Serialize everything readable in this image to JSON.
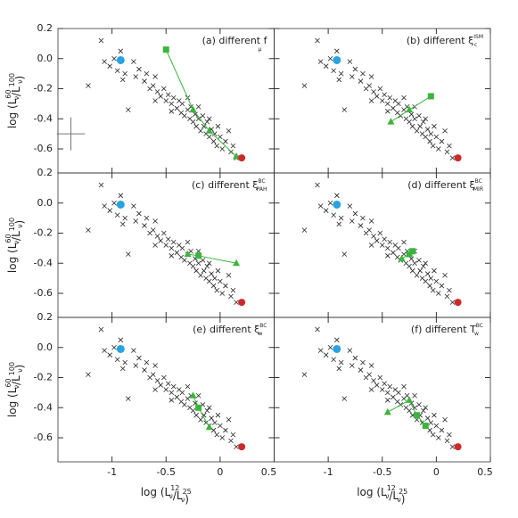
{
  "observed": {
    "x": [
      -1.22,
      -1.1,
      -1.07,
      -1.02,
      -0.98,
      -0.95,
      -0.92,
      -0.88,
      -0.85,
      -0.8,
      -0.78,
      -0.75,
      -0.7,
      -0.68,
      -0.65,
      -0.62,
      -0.6,
      -0.58,
      -0.55,
      -0.52,
      -0.5,
      -0.48,
      -0.45,
      -0.43,
      -0.4,
      -0.38,
      -0.36,
      -0.35,
      -0.33,
      -0.3,
      -0.28,
      -0.27,
      -0.25,
      -0.23,
      -0.22,
      -0.2,
      -0.18,
      -0.16,
      -0.15,
      -0.13,
      -0.12,
      -0.1,
      -0.08,
      -0.06,
      -0.05,
      -0.03,
      -0.02,
      0.0,
      0.02,
      0.05,
      0.08,
      0.1,
      0.12,
      0.15,
      -0.9,
      -0.6,
      -0.45,
      -0.3,
      -0.2,
      -0.1
    ],
    "y": [
      -0.18,
      0.12,
      -0.02,
      -0.05,
      0.0,
      -0.08,
      0.05,
      -0.1,
      -0.34,
      -0.02,
      -0.12,
      -0.07,
      -0.15,
      -0.1,
      -0.2,
      -0.18,
      -0.12,
      -0.22,
      -0.25,
      -0.2,
      -0.28,
      -0.24,
      -0.3,
      -0.26,
      -0.33,
      -0.28,
      -0.36,
      -0.3,
      -0.38,
      -0.34,
      -0.4,
      -0.32,
      -0.42,
      -0.37,
      -0.45,
      -0.4,
      -0.48,
      -0.38,
      -0.45,
      -0.5,
      -0.42,
      -0.52,
      -0.47,
      -0.55,
      -0.5,
      -0.58,
      -0.45,
      -0.52,
      -0.6,
      -0.55,
      -0.48,
      -0.62,
      -0.58,
      -0.66,
      -0.14,
      -0.28,
      -0.35,
      -0.26,
      -0.32,
      -0.4
    ],
    "color": "#222222",
    "blue": {
      "x": -0.92,
      "y": -0.01,
      "color": "#29a3e0"
    },
    "red": {
      "x": 0.2,
      "y": -0.66,
      "color": "#cc2a2a"
    },
    "error_bar": {
      "x": -1.38,
      "y": -0.5,
      "xerr": 0.13,
      "yerr": 0.11
    }
  },
  "chart_data": [
    {
      "type": "scatter",
      "title": "(a) different f",
      "title_sub": "μ",
      "title_sup": "",
      "xlim": [
        -1.5,
        0.5
      ],
      "ylim": [
        -0.76,
        0.2
      ],
      "yticks": [
        0.2,
        {
          "value": 0,
          "label": "0.0"
        },
        -0.2,
        -0.4,
        -0.6
      ],
      "ylabel": {
        "text": [
          "log (L",
          "/L",
          ")"
        ],
        "sub": [
          "ν",
          "ν"
        ],
        "sup": [
          "60",
          "100"
        ]
      },
      "model": {
        "color": "#3cb43c",
        "x": [
          -0.5,
          -0.25,
          -0.1,
          0.15
        ],
        "y": [
          0.06,
          -0.34,
          -0.48,
          -0.65
        ],
        "markers": [
          "square",
          "triangle",
          "triangle",
          "triangle"
        ]
      }
    },
    {
      "type": "scatter",
      "title": "(b) different ξ",
      "title_sub": "c",
      "title_sup": "ISM",
      "xlim": [
        -1.5,
        0.5
      ],
      "ylim": [
        -0.76,
        0.2
      ],
      "model": {
        "color": "#3cb43c",
        "x": [
          -0.42,
          -0.25,
          -0.05
        ],
        "y": [
          -0.42,
          -0.34,
          -0.25
        ],
        "markers": [
          "triangle",
          "triangle",
          "square"
        ]
      }
    },
    {
      "type": "scatter",
      "title": "(c) different ξ",
      "title_sub": "PAH",
      "title_sup": "BC",
      "xlim": [
        -1.5,
        0.5
      ],
      "ylim": [
        -0.76,
        0.2
      ],
      "yticks": [
        0.2,
        {
          "value": 0,
          "label": "0.0"
        },
        -0.2,
        -0.4,
        -0.6
      ],
      "ylabel": {
        "text": [
          "log (L",
          "/L",
          ")"
        ],
        "sub": [
          "ν",
          "ν"
        ],
        "sup": [
          "60",
          "100"
        ]
      },
      "model": {
        "color": "#3cb43c",
        "x": [
          -0.3,
          -0.2,
          0.15
        ],
        "y": [
          -0.34,
          -0.35,
          -0.4
        ],
        "markers": [
          "triangle",
          "square",
          "triangle"
        ]
      }
    },
    {
      "type": "scatter",
      "title": "(d) different ξ",
      "title_sub": "MIR",
      "title_sup": "BC",
      "xlim": [
        -1.5,
        0.5
      ],
      "ylim": [
        -0.76,
        0.2
      ],
      "model": {
        "color": "#3cb43c",
        "x": [
          -0.32,
          -0.25,
          -0.22
        ],
        "y": [
          -0.37,
          -0.34,
          -0.32
        ],
        "markers": [
          "triangle",
          "square",
          "square"
        ]
      }
    },
    {
      "type": "scatter",
      "title": "(e) different ξ",
      "title_sub": "w",
      "title_sup": "BC",
      "xlim": [
        -1.5,
        0.5
      ],
      "ylim": [
        -0.76,
        0.2
      ],
      "yticks": [
        0.2,
        {
          "value": 0,
          "label": "0.0"
        },
        -0.2,
        -0.4,
        -0.6
      ],
      "xticks": [
        -1,
        -0.5,
        0,
        0.5
      ],
      "ylabel": {
        "text": [
          "log (L",
          "/L",
          ")"
        ],
        "sub": [
          "ν",
          "ν"
        ],
        "sup": [
          "60",
          "100"
        ]
      },
      "xlabel": {
        "text": [
          "log (L",
          "/L",
          ")"
        ],
        "sub": [
          "ν",
          "ν"
        ],
        "sup": [
          "12",
          "25"
        ]
      },
      "model": {
        "color": "#3cb43c",
        "x": [
          -0.25,
          -0.2,
          -0.1
        ],
        "y": [
          -0.32,
          -0.4,
          -0.53
        ],
        "markers": [
          "triangle",
          "square",
          "triangle"
        ]
      }
    },
    {
      "type": "scatter",
      "title": "(f) different T",
      "title_sub": "w",
      "title_sup": "BC",
      "xlim": [
        -1.5,
        0.5
      ],
      "ylim": [
        -0.76,
        0.2
      ],
      "xticks": [
        -1,
        -0.5,
        0,
        0.5
      ],
      "xlabel": {
        "text": [
          "log (L",
          "/L",
          ")"
        ],
        "sub": [
          "ν",
          "ν"
        ],
        "sup": [
          "12",
          "25"
        ]
      },
      "model": {
        "color": "#3cb43c",
        "x": [
          -0.45,
          -0.25,
          -0.18,
          -0.1
        ],
        "y": [
          -0.43,
          -0.35,
          -0.45,
          -0.52
        ],
        "markers": [
          "triangle",
          "triangle",
          "square",
          "square"
        ]
      }
    }
  ]
}
